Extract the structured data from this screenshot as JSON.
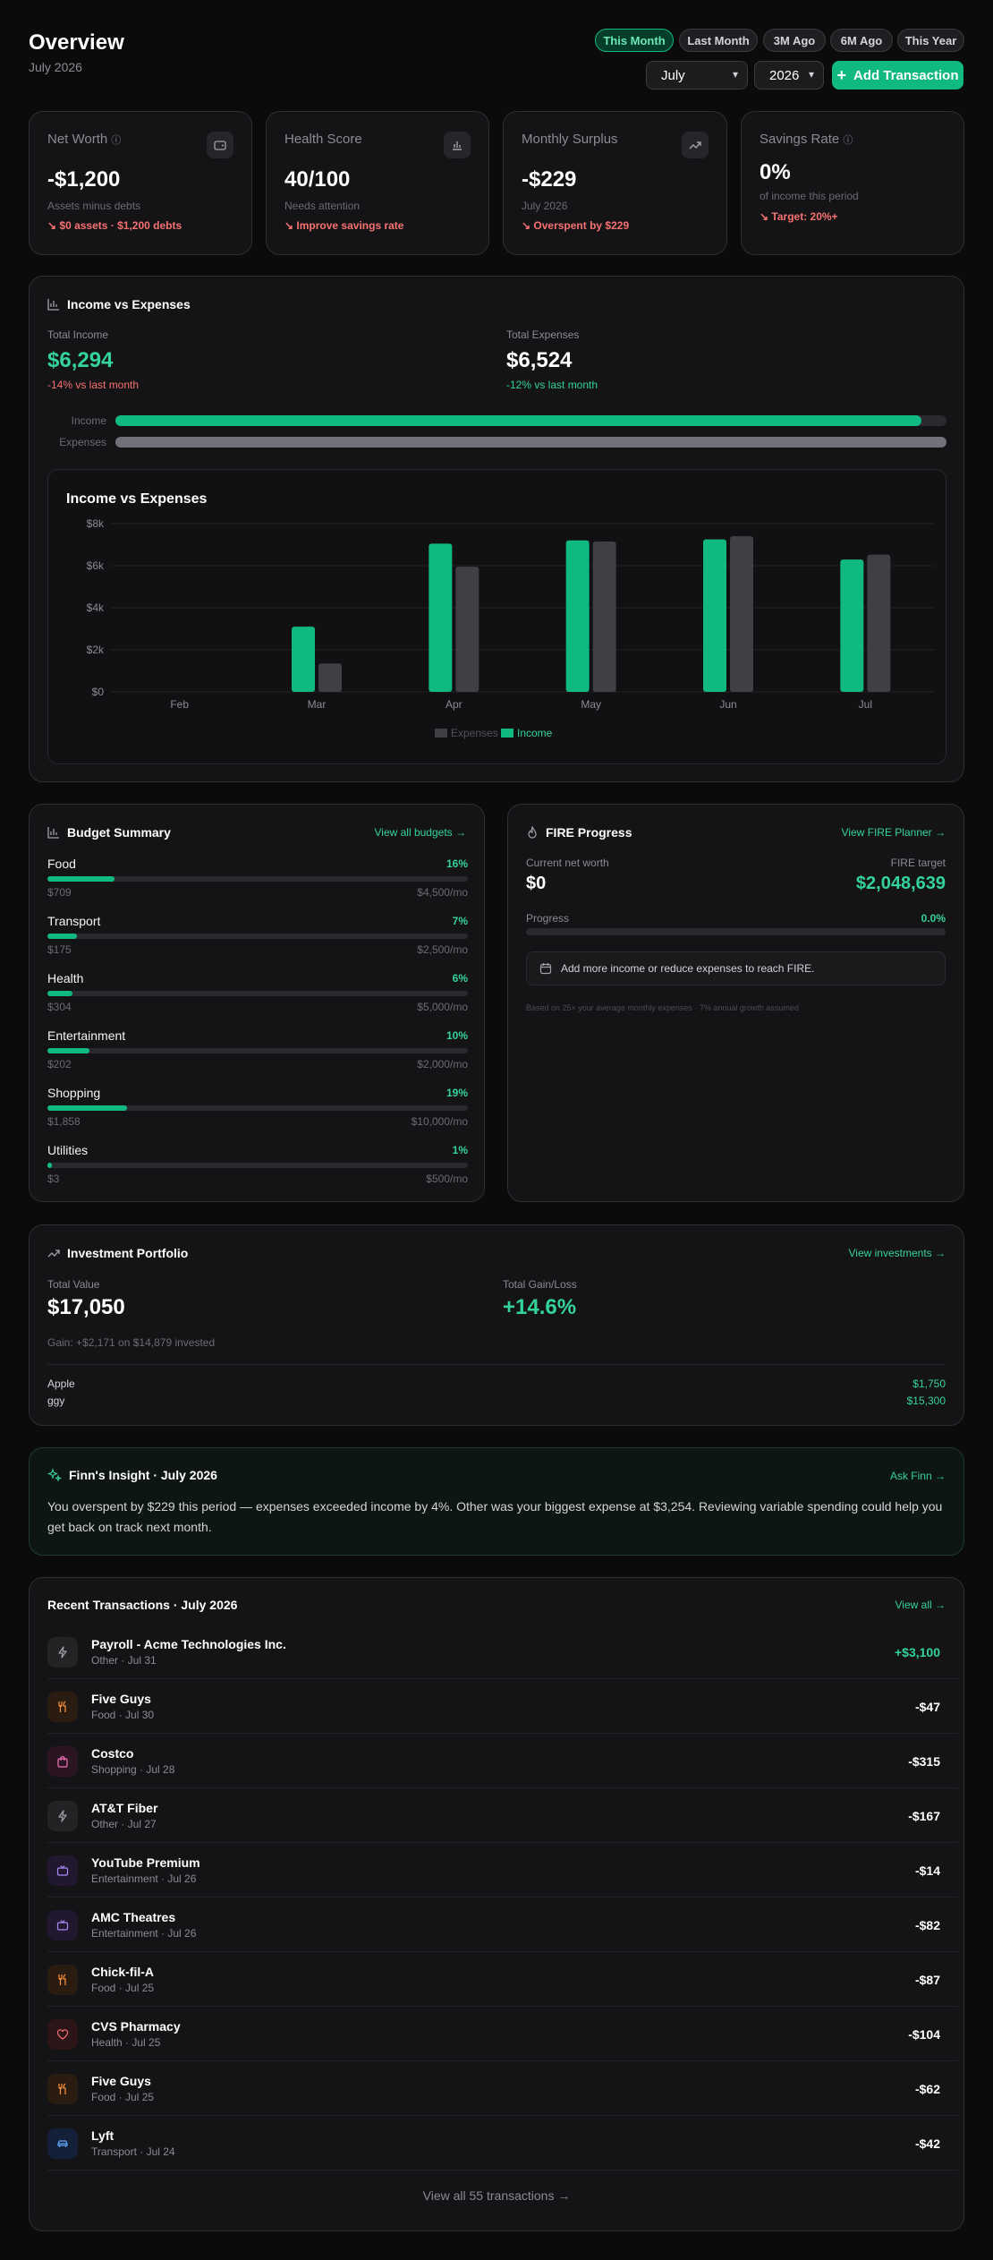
{
  "header": {
    "title": "Overview",
    "subtitle": "July 2026",
    "periods": [
      "This Month",
      "Last Month",
      "3M Ago",
      "6M Ago",
      "This Year"
    ],
    "month": "July",
    "year": "2026",
    "add_button": "Add Transaction"
  },
  "stats": {
    "net_worth": {
      "label": "Net Worth",
      "value": "-$1,200",
      "sub": "Assets minus debts",
      "trend": "$0 assets · $1,200 debts"
    },
    "health": {
      "label": "Health Score",
      "value": "40/100",
      "sub": "Needs attention",
      "trend": "Improve savings rate"
    },
    "surplus": {
      "label": "Monthly Surplus",
      "value": "-$229",
      "sub": "July 2026",
      "trend": "Overspent by $229"
    },
    "savings": {
      "label": "Savings Rate",
      "value": "0%",
      "sub": "of income this period",
      "trend": "Target: 20%+"
    }
  },
  "income_expenses": {
    "title": "Income vs Expenses",
    "income_label": "Total Income",
    "income_value": "$6,294",
    "income_change": "-14% vs last month",
    "expense_label": "Total Expenses",
    "expense_value": "$6,524",
    "expense_change": "-12% vs last month",
    "bar_income_label": "Income",
    "bar_expense_label": "Expenses",
    "income_share": 0.97,
    "expense_share": 1.0
  },
  "chart_data": {
    "type": "bar",
    "title": "Income vs Expenses",
    "categories": [
      "Feb",
      "Mar",
      "Apr",
      "May",
      "Jun",
      "Jul"
    ],
    "series": [
      {
        "name": "Income",
        "values": [
          0,
          3100,
          7050,
          7200,
          7250,
          6294
        ],
        "color": "#10b981"
      },
      {
        "name": "Expenses",
        "values": [
          0,
          1350,
          5950,
          7150,
          7400,
          6524
        ],
        "color": "#3f3f46"
      }
    ],
    "yticks": [
      "$0",
      "$2k",
      "$4k",
      "$6k",
      "$8k"
    ],
    "ylim": [
      0,
      8000
    ],
    "legend": [
      "Expenses",
      "Income"
    ],
    "legend_position": "bottom",
    "grid": true
  },
  "budget": {
    "title": "Budget Summary",
    "link": "View all budgets",
    "items": [
      {
        "name": "Food",
        "pct": "16%",
        "fill": 0.16,
        "spent": "$709",
        "limit": "$4,500/mo"
      },
      {
        "name": "Transport",
        "pct": "7%",
        "fill": 0.07,
        "spent": "$175",
        "limit": "$2,500/mo"
      },
      {
        "name": "Health",
        "pct": "6%",
        "fill": 0.06,
        "spent": "$304",
        "limit": "$5,000/mo"
      },
      {
        "name": "Entertainment",
        "pct": "10%",
        "fill": 0.1,
        "spent": "$202",
        "limit": "$2,000/mo"
      },
      {
        "name": "Shopping",
        "pct": "19%",
        "fill": 0.19,
        "spent": "$1,858",
        "limit": "$10,000/mo"
      },
      {
        "name": "Utilities",
        "pct": "1%",
        "fill": 0.01,
        "spent": "$3",
        "limit": "$500/mo"
      }
    ]
  },
  "fire": {
    "title": "FIRE Progress",
    "link": "View FIRE Planner",
    "current_label": "Current net worth",
    "current_value": "$0",
    "target_label": "FIRE target",
    "target_value": "$2,048,639",
    "progress_label": "Progress",
    "progress_value": "0.0%",
    "tip": "Add more income or reduce expenses to reach FIRE.",
    "footnote": "Based on 25× your average monthly expenses · 7% annual growth assumed"
  },
  "investments": {
    "title": "Investment Portfolio",
    "link": "View investments",
    "total_label": "Total Value",
    "total_value": "$17,050",
    "gain_label": "Total Gain/Loss",
    "gain_value": "+14.6%",
    "gain_note": "Gain: +$2,171 on $14,879 invested",
    "holdings": [
      {
        "name": "Apple",
        "value": "$1,750"
      },
      {
        "name": "ggy",
        "value": "$15,300"
      }
    ]
  },
  "insight": {
    "title": "Finn's Insight · July 2026",
    "link": "Ask Finn",
    "text": "You overspent by $229 this period — expenses exceeded income by 4%. Other was your biggest expense at $3,254. Reviewing variable spending could help you get back on track next month."
  },
  "transactions": {
    "title": "Recent Transactions · July 2026",
    "link": "View all",
    "footer": "View all 55 transactions",
    "items": [
      {
        "name": "Payroll - Acme Technologies Inc.",
        "meta": "Other · Jul 31",
        "amount": "+$3,100",
        "icon": "bolt-icon",
        "positive": true
      },
      {
        "name": "Five Guys",
        "meta": "Food · Jul 30",
        "amount": "-$47",
        "icon": "utensils-icon",
        "positive": false
      },
      {
        "name": "Costco",
        "meta": "Shopping · Jul 28",
        "amount": "-$315",
        "icon": "shopping-bag-icon",
        "positive": false
      },
      {
        "name": "AT&T Fiber",
        "meta": "Other · Jul 27",
        "amount": "-$167",
        "icon": "bolt-icon",
        "positive": false
      },
      {
        "name": "YouTube Premium",
        "meta": "Entertainment · Jul 26",
        "amount": "-$14",
        "icon": "tv-icon",
        "positive": false
      },
      {
        "name": "AMC Theatres",
        "meta": "Entertainment · Jul 26",
        "amount": "-$82",
        "icon": "tv-icon",
        "positive": false
      },
      {
        "name": "Chick-fil-A",
        "meta": "Food · Jul 25",
        "amount": "-$87",
        "icon": "utensils-icon",
        "positive": false
      },
      {
        "name": "CVS Pharmacy",
        "meta": "Health · Jul 25",
        "amount": "-$104",
        "icon": "heart-icon",
        "positive": false
      },
      {
        "name": "Five Guys",
        "meta": "Food · Jul 25",
        "amount": "-$62",
        "icon": "utensils-icon",
        "positive": false
      },
      {
        "name": "Lyft",
        "meta": "Transport · Jul 24",
        "amount": "-$42",
        "icon": "car-icon",
        "positive": false
      }
    ]
  },
  "colors": {
    "accent": "#10b981",
    "negative": "#f87171",
    "background": "#0b0b0c",
    "card": "#141416"
  }
}
